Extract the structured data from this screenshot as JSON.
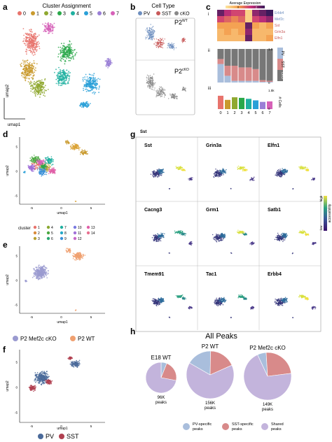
{
  "panels": {
    "a": {
      "letter": "a",
      "title": "Cluster Assignment",
      "xlabel": "umap1",
      "ylabel": "umap2",
      "legend": [
        "0",
        "1",
        "2",
        "3",
        "4",
        "5",
        "6",
        "7"
      ],
      "colors": [
        "#e8736c",
        "#c99a2e",
        "#8fa830",
        "#2aa84a",
        "#1fb0a0",
        "#2aa0d8",
        "#9a7fd6",
        "#d661b8"
      ]
    },
    "b": {
      "letter": "b",
      "title": "Cell Type",
      "legend": [
        "PV",
        "SST",
        "cKO"
      ],
      "colors": [
        "#6e8fbf",
        "#c85a5a",
        "#888888"
      ],
      "top_label": "P2",
      "top_sup": "WT",
      "bottom_label": "P2",
      "bottom_sup": "cKO"
    },
    "c": {
      "letter": "c",
      "expr_title": "Average Expression",
      "expr_min": "0",
      "expr_max": "2",
      "sub_i": "i",
      "sub_ii": "ii",
      "sub_iii": "iii",
      "genes": [
        "Erbb4",
        "Mef2c",
        "Sst",
        "Grin3a",
        "Elfn1"
      ],
      "gene_colors": [
        "#6e8fbf",
        "#6e8fbf",
        "#c85a5a",
        "#c85a5a",
        "#c85a5a"
      ],
      "prop_labels": [
        "PV",
        "SST",
        "cKO"
      ],
      "count_label": "# Cells",
      "count_tick": "1.5k",
      "ii_tick_top": "1.0",
      "ii_tick_bottom": "0",
      "iii_tick_bottom": "0",
      "clusters": [
        "0",
        "1",
        "2",
        "3",
        "4",
        "5",
        "6",
        "7"
      ]
    },
    "d": {
      "letter": "d",
      "xlabel": "umap1",
      "ylabel": "umap2",
      "legend_title": "cluster",
      "ticks_x": [
        "-5",
        "0",
        "5"
      ],
      "ticks_y": [
        "5",
        "0",
        "-5"
      ],
      "legend": [
        "1",
        "2",
        "3",
        "4",
        "5",
        "6",
        "7",
        "8",
        "9",
        "10",
        "11",
        "12",
        "13",
        "14"
      ]
    },
    "e": {
      "letter": "e",
      "xlabel": "umap1",
      "ylabel": "umap2",
      "ticks_x": [
        "-5",
        "0",
        "5"
      ],
      "ticks_y": [
        "5",
        "0",
        "-5"
      ],
      "legend": [
        "P2 Mef2c cKO",
        "P2 WT"
      ],
      "colors": [
        "#9a9ad0",
        "#f0a070"
      ]
    },
    "f": {
      "letter": "f",
      "xlabel": "umap1",
      "ylabel": "umap2",
      "ticks_x": [
        "-5",
        "0",
        "5"
      ],
      "ticks_y": [
        "5",
        "0",
        "-5"
      ],
      "legend": [
        "PV",
        "SST"
      ],
      "colors": [
        "#4a6a9a",
        "#b04050"
      ]
    },
    "g": {
      "letter": "g",
      "top_label": "Sst",
      "genes": [
        "Sst",
        "Grin3a",
        "Elfn1",
        "Cacng3",
        "Grm1",
        "Satb1",
        "Tmem91",
        "Tac1",
        "Erbb4"
      ],
      "scale_title": "accessibility",
      "scale_high": "high",
      "scale_low": "low"
    },
    "h": {
      "letter": "h",
      "title": "All Peaks",
      "pies": [
        {
          "name": "E18 WT",
          "count": "96K",
          "unit": "peaks"
        },
        {
          "name": "P2 WT",
          "count": "156K",
          "unit": "peaks"
        },
        {
          "name": "P2 Mef2c cKO",
          "count": "149K",
          "unit": "peaks"
        }
      ],
      "legend": [
        "PV-specific\npeaks",
        "SST-specific\npeaks",
        "Shared\npeaks"
      ],
      "legend_lines": [
        [
          "PV-specific",
          "peaks"
        ],
        [
          "SST-specific",
          "peaks"
        ],
        [
          "Shared",
          "peaks"
        ]
      ],
      "colors": [
        "#a9bedc",
        "#d88a8a",
        "#c3b4dc"
      ]
    }
  },
  "chart_data": {
    "type": "pie",
    "title": "All Peaks",
    "series": [
      {
        "name": "E18 WT",
        "total": "96K",
        "values": [
          0.06,
          0.22,
          0.72
        ]
      },
      {
        "name": "P2 WT",
        "total": "156K",
        "values": [
          0.17,
          0.18,
          0.65
        ]
      },
      {
        "name": "P2 Mef2c cKO",
        "total": "149K",
        "values": [
          0.06,
          0.24,
          0.7
        ]
      }
    ],
    "categories": [
      "PV-specific peaks",
      "SST-specific peaks",
      "Shared peaks"
    ]
  }
}
